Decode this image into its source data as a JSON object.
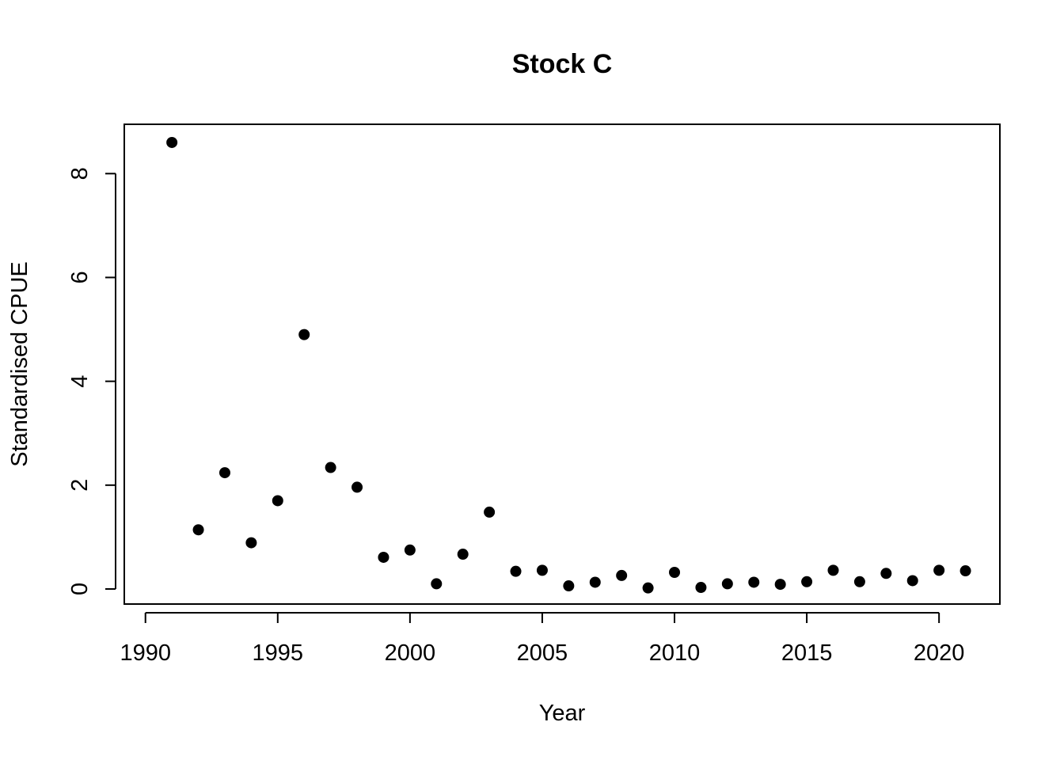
{
  "chart_data": {
    "type": "scatter",
    "title": "Stock C",
    "xlabel": "Year",
    "ylabel": "Standardised CPUE",
    "xlim": [
      1989.2,
      2022.3
    ],
    "ylim": [
      -0.29,
      8.95
    ],
    "x_ticks": [
      1990,
      1995,
      2000,
      2005,
      2010,
      2015,
      2020
    ],
    "y_ticks": [
      0,
      2,
      4,
      6,
      8
    ],
    "grid": false,
    "legend": "none",
    "marker": "filled-circle",
    "color": "#000000",
    "series": [
      {
        "x": [
          1991,
          1992,
          1993,
          1994,
          1995,
          1996,
          1997,
          1998,
          1999,
          2000,
          2001,
          2002,
          2003,
          2004,
          2005,
          2006,
          2007,
          2008,
          2009,
          2010,
          2011,
          2012,
          2013,
          2014,
          2015,
          2016,
          2017,
          2018,
          2019,
          2020,
          2021
        ],
        "y": [
          8.6,
          1.14,
          2.24,
          0.89,
          1.7,
          4.9,
          2.34,
          1.96,
          0.61,
          0.75,
          0.1,
          0.67,
          1.48,
          0.34,
          0.36,
          0.06,
          0.13,
          0.26,
          0.02,
          0.32,
          0.03,
          0.1,
          0.13,
          0.09,
          0.14,
          0.36,
          0.14,
          0.3,
          0.16,
          0.36,
          0.35
        ]
      }
    ]
  }
}
